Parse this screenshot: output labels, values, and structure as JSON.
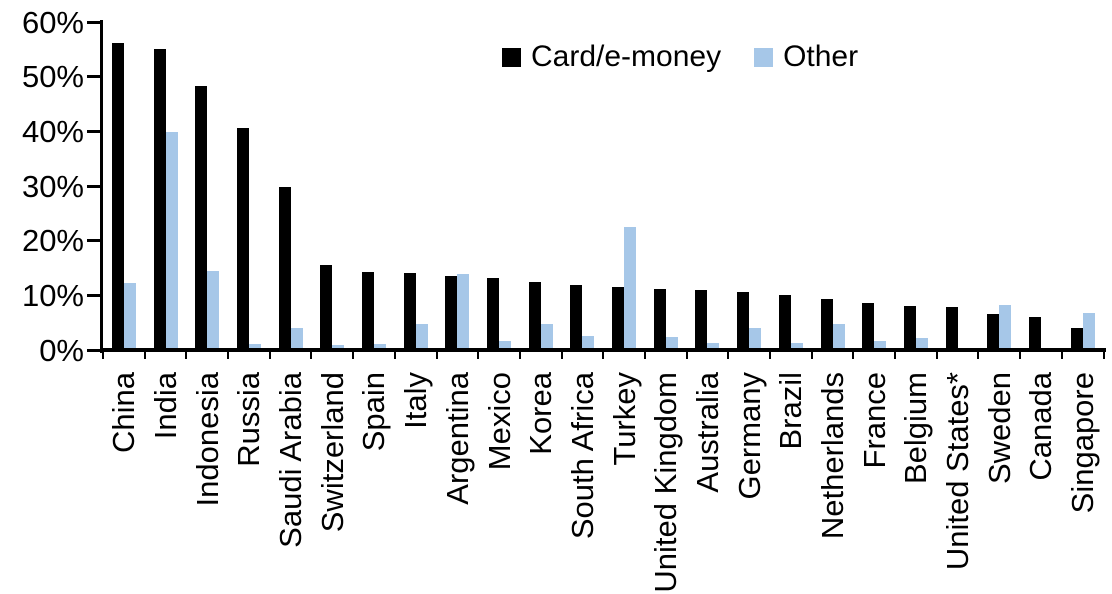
{
  "chart_data": {
    "type": "bar",
    "title": "",
    "xlabel": "",
    "ylabel": "",
    "ylim": [
      0,
      60
    ],
    "grid": false,
    "legend_position": "top-center",
    "y_tick_values": [
      0,
      10,
      20,
      30,
      40,
      50,
      60
    ],
    "y_tick_labels": [
      "0%",
      "10%",
      "20%",
      "30%",
      "40%",
      "50%",
      "60%"
    ],
    "categories": [
      "China",
      "India",
      "Indonesia",
      "Russia",
      "Saudi Arabia",
      "Switzerland",
      "Spain",
      "Italy",
      "Argentina",
      "Mexico",
      "Korea",
      "South Africa",
      "Turkey",
      "United Kingdom",
      "Australia",
      "Germany",
      "Brazil",
      "Netherlands",
      "France",
      "Belgium",
      "United States*",
      "Sweden",
      "Canada",
      "Singapore"
    ],
    "series": [
      {
        "name": "Card/e-money",
        "color": "#000000",
        "values": [
          56.2,
          55.0,
          48.3,
          40.6,
          29.9,
          15.6,
          14.2,
          14.0,
          13.5,
          13.1,
          12.4,
          11.8,
          11.6,
          11.1,
          10.9,
          10.7,
          10.0,
          9.3,
          8.6,
          8.1,
          7.9,
          6.6,
          6.0,
          4.0
        ]
      },
      {
        "name": "Other",
        "color": "#A6C7E8",
        "values": [
          12.3,
          39.8,
          14.5,
          1.1,
          4.0,
          0.9,
          1.1,
          4.7,
          13.9,
          1.6,
          4.7,
          2.6,
          22.5,
          2.4,
          1.2,
          4.1,
          1.2,
          4.8,
          1.6,
          2.2,
          0.4,
          8.2,
          0.0,
          6.8
        ]
      }
    ]
  }
}
